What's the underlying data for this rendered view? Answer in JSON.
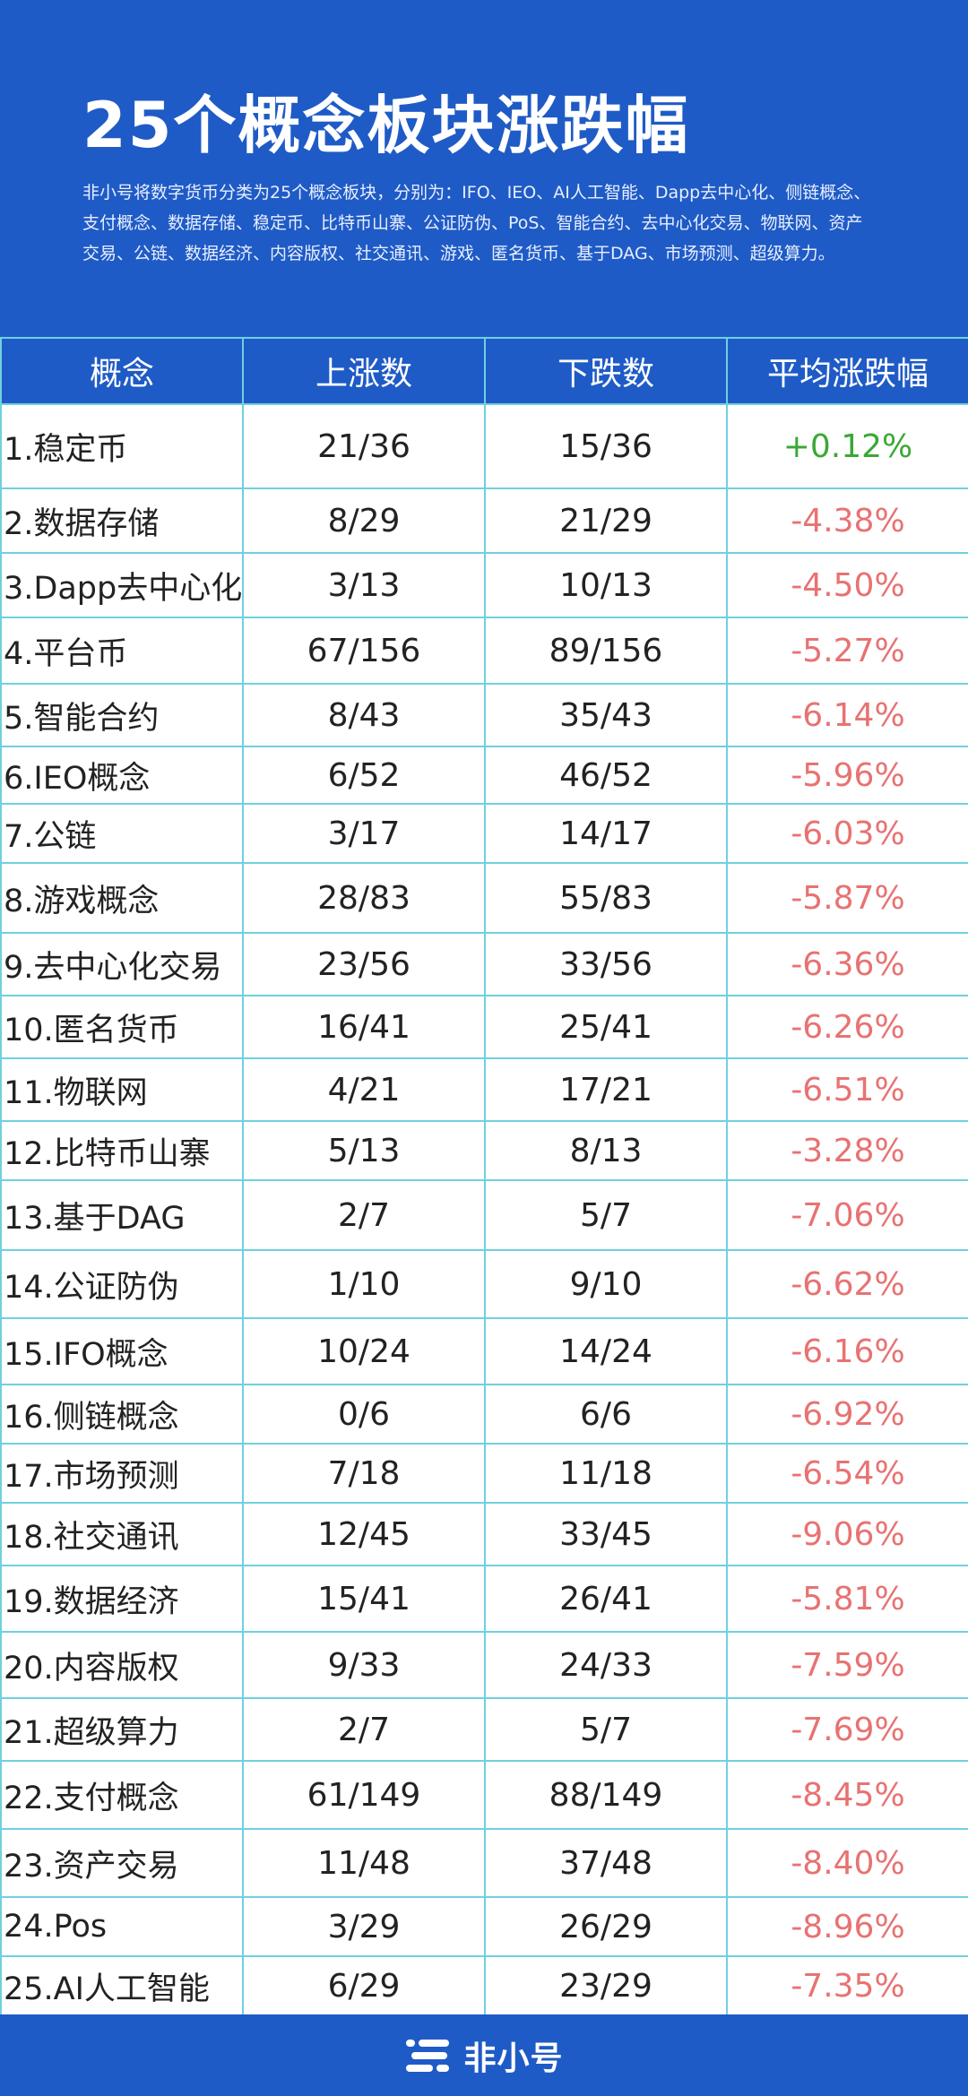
{
  "header": {
    "title": "25个概念板块涨跌幅",
    "description": "非小号将数字货币分类为25个概念板块，分别为：IFO、IEO、AI人工智能、Dapp去中心化、侧链概念、支付概念、数据存储、稳定币、比特币山寨、公证防伪、PoS、智能合约、去中心化交易、物联网、资产交易、公链、数据经济、内容版权、社交通讯、游戏、匿名货币、基于DAG、市场预测、超级算力。"
  },
  "table": {
    "columns": [
      "概念",
      "上涨数",
      "下跌数",
      "平均涨跌幅"
    ],
    "rows": [
      {
        "name": "1.稳定币",
        "up": "21/36",
        "down": "15/36",
        "avg": "+0.12%",
        "trend": "pos"
      },
      {
        "name": "2.数据存储",
        "up": "8/29",
        "down": "21/29",
        "avg": "-4.38%",
        "trend": "neg"
      },
      {
        "name": "3.Dapp去中心化",
        "up": "3/13",
        "down": "10/13",
        "avg": "-4.50%",
        "trend": "neg"
      },
      {
        "name": "4.平台币",
        "up": "67/156",
        "down": "89/156",
        "avg": "-5.27%",
        "trend": "neg"
      },
      {
        "name": "5.智能合约",
        "up": "8/43",
        "down": "35/43",
        "avg": "-6.14%",
        "trend": "neg"
      },
      {
        "name": "6.IEO概念",
        "up": "6/52",
        "down": "46/52",
        "avg": "-5.96%",
        "trend": "neg"
      },
      {
        "name": "7.公链",
        "up": "3/17",
        "down": "14/17",
        "avg": "-6.03%",
        "trend": "neg"
      },
      {
        "name": "8.游戏概念",
        "up": "28/83",
        "down": "55/83",
        "avg": "-5.87%",
        "trend": "neg"
      },
      {
        "name": "9.去中心化交易",
        "up": "23/56",
        "down": "33/56",
        "avg": "-6.36%",
        "trend": "neg"
      },
      {
        "name": "10.匿名货币",
        "up": "16/41",
        "down": "25/41",
        "avg": "-6.26%",
        "trend": "neg"
      },
      {
        "name": "11.物联网",
        "up": "4/21",
        "down": "17/21",
        "avg": "-6.51%",
        "trend": "neg"
      },
      {
        "name": "12.比特币山寨",
        "up": "5/13",
        "down": "8/13",
        "avg": "-3.28%",
        "trend": "neg"
      },
      {
        "name": "13.基于DAG",
        "up": "2/7",
        "down": "5/7",
        "avg": "-7.06%",
        "trend": "neg"
      },
      {
        "name": "14.公证防伪",
        "up": "1/10",
        "down": "9/10",
        "avg": "-6.62%",
        "trend": "neg"
      },
      {
        "name": "15.IFO概念",
        "up": "10/24",
        "down": "14/24",
        "avg": "-6.16%",
        "trend": "neg"
      },
      {
        "name": "16.侧链概念",
        "up": "0/6",
        "down": "6/6",
        "avg": "-6.92%",
        "trend": "neg"
      },
      {
        "name": "17.市场预测",
        "up": "7/18",
        "down": "11/18",
        "avg": "-6.54%",
        "trend": "neg"
      },
      {
        "name": "18.社交通讯",
        "up": "12/45",
        "down": "33/45",
        "avg": "-9.06%",
        "trend": "neg"
      },
      {
        "name": "19.数据经济",
        "up": "15/41",
        "down": "26/41",
        "avg": "-5.81%",
        "trend": "neg"
      },
      {
        "name": "20.内容版权",
        "up": "9/33",
        "down": "24/33",
        "avg": "-7.59%",
        "trend": "neg"
      },
      {
        "name": "21.超级算力",
        "up": "2/7",
        "down": "5/7",
        "avg": "-7.69%",
        "trend": "neg"
      },
      {
        "name": "22.支付概念",
        "up": "61/149",
        "down": "88/149",
        "avg": "-8.45%",
        "trend": "neg"
      },
      {
        "name": "23.资产交易",
        "up": "11/48",
        "down": "37/48",
        "avg": "-8.40%",
        "trend": "neg"
      },
      {
        "name": "24.Pos",
        "up": "3/29",
        "down": "26/29",
        "avg": "-8.96%",
        "trend": "neg"
      },
      {
        "name": "25.AI人工智能",
        "up": "6/29",
        "down": "23/29",
        "avg": "-7.35%",
        "trend": "neg"
      }
    ]
  },
  "colors": {
    "brand_blue": "#1f5bc6",
    "grid_line": "#6fd0e0",
    "positive": "#3aa835",
    "negative": "#e87272"
  },
  "footer": {
    "logo_text": "非小号",
    "logo_icon": "feixiaohao-logo-icon"
  }
}
